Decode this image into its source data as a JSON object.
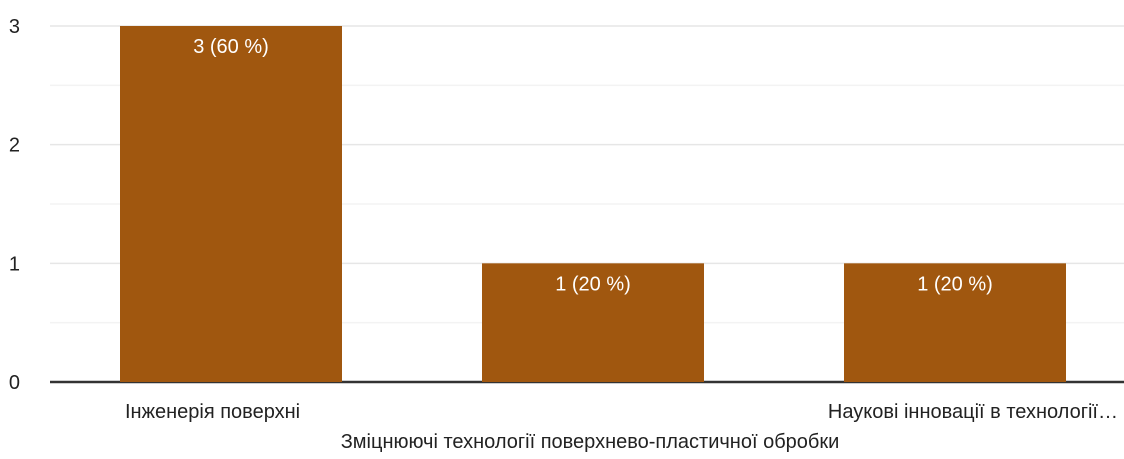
{
  "chart_data": {
    "type": "bar",
    "categories": [
      "Інженерія поверхні",
      "Зміцнюючі технології поверхнево-пластичної обробки",
      "Наукові інновації в технології…"
    ],
    "x_tick_labels": [
      "Інженерія поверхні",
      "",
      "Наукові інновації в технології…"
    ],
    "values": [
      3,
      1,
      1
    ],
    "data_labels": [
      "3 (60 %)",
      "1 (20 %)",
      "1 (20 %)"
    ],
    "y_ticks": [
      0,
      1,
      2,
      3
    ],
    "ylim": [
      0,
      3
    ],
    "minor_gridlines": true,
    "legend": "none"
  },
  "colors": {
    "bar": "#a0570f",
    "data_label": "#ffffff",
    "tick_label": "#222222",
    "gridline": "#e6e6e6",
    "minor_gridline": "#f3f3f3",
    "baseline": "#333333"
  }
}
